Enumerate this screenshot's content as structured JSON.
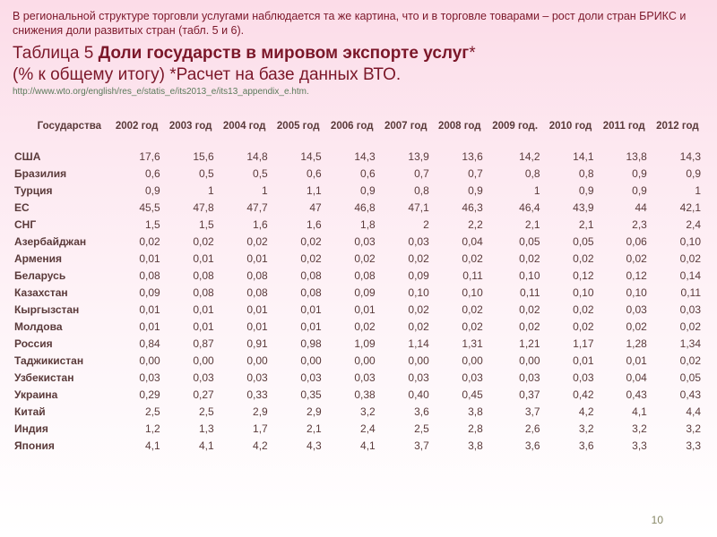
{
  "intro": "В региональной структуре торговли услугами наблюдается та же картина, что и в торговле товарами – рост доли стран БРИКС и снижения доли развитых стран (табл. 5 и 6).",
  "title_prefix": "Таблица 5 ",
  "title_bold": "Доли государств в мировом экспорте услуг",
  "asterisk": "*",
  "subtitle": "(% к общему итогу)  *Расчет на базе данных ВТО.",
  "source_url": "http://www.wto.org/english/res_e/statis_e/its2013_e/its13_appendix_e.htm.",
  "page_number": "10",
  "header_country": "Государства",
  "years": [
    "2002 год",
    "2003 год",
    "2004 год",
    "2005 год",
    "2006 год",
    "2007 год",
    "2008 год",
    "2009 год.",
    "2010 год",
    "2011 год",
    "2012 год"
  ],
  "rows": [
    {
      "name": "США",
      "vals": [
        "17,6",
        "15,6",
        "14,8",
        "14,5",
        "14,3",
        "13,9",
        "13,6",
        "14,2",
        "14,1",
        "13,8",
        "14,3"
      ]
    },
    {
      "name": "Бразилия",
      "vals": [
        "0,6",
        "0,5",
        "0,5",
        "0,6",
        "0,6",
        "0,7",
        "0,7",
        "0,8",
        "0,8",
        "0,9",
        "0,9"
      ]
    },
    {
      "name": "Турция",
      "vals": [
        "0,9",
        "1",
        "1",
        "1,1",
        "0,9",
        "0,8",
        "0,9",
        "1",
        "0,9",
        "0,9",
        "1"
      ]
    },
    {
      "name": "ЕС",
      "vals": [
        "45,5",
        "47,8",
        "47,7",
        "47",
        "46,8",
        "47,1",
        "46,3",
        "46,4",
        "43,9",
        "44",
        "42,1"
      ]
    },
    {
      "name": "СНГ",
      "vals": [
        "1,5",
        "1,5",
        "1,6",
        "1,6",
        "1,8",
        "2",
        "2,2",
        "2,1",
        "2,1",
        "2,3",
        "2,4"
      ]
    },
    {
      "name": "Азербайджан",
      "vals": [
        "0,02",
        "0,02",
        "0,02",
        "0,02",
        "0,03",
        "0,03",
        "0,04",
        "0,05",
        "0,05",
        "0,06",
        "0,10"
      ]
    },
    {
      "name": "Армения",
      "vals": [
        "0,01",
        "0,01",
        "0,01",
        "0,02",
        "0,02",
        "0,02",
        "0,02",
        "0,02",
        "0,02",
        "0,02",
        "0,02"
      ]
    },
    {
      "name": "Беларусь",
      "vals": [
        "0,08",
        "0,08",
        "0,08",
        "0,08",
        "0,08",
        "0,09",
        "0,11",
        "0,10",
        "0,12",
        "0,12",
        "0,14"
      ]
    },
    {
      "name": "Казахстан",
      "vals": [
        "0,09",
        "0,08",
        "0,08",
        "0,08",
        "0,09",
        "0,10",
        "0,10",
        "0,11",
        "0,10",
        "0,10",
        "0,11"
      ]
    },
    {
      "name": "Кыргызстан",
      "vals": [
        "0,01",
        "0,01",
        "0,01",
        "0,01",
        "0,01",
        "0,02",
        "0,02",
        "0,02",
        "0,02",
        "0,03",
        "0,03"
      ]
    },
    {
      "name": "Молдова",
      "vals": [
        "0,01",
        "0,01",
        "0,01",
        "0,01",
        "0,02",
        "0,02",
        "0,02",
        "0,02",
        "0,02",
        "0,02",
        "0,02"
      ]
    },
    {
      "name": "Россия",
      "vals": [
        "0,84",
        "0,87",
        "0,91",
        "0,98",
        "1,09",
        "1,14",
        "1,31",
        "1,21",
        "1,17",
        "1,28",
        "1,34"
      ]
    },
    {
      "name": "Таджикистан",
      "vals": [
        "0,00",
        "0,00",
        "0,00",
        "0,00",
        "0,00",
        "0,00",
        "0,00",
        "0,00",
        "0,01",
        "0,01",
        "0,02"
      ]
    },
    {
      "name": "Узбекистан",
      "vals": [
        "0,03",
        "0,03",
        "0,03",
        "0,03",
        "0,03",
        "0,03",
        "0,03",
        "0,03",
        "0,03",
        "0,04",
        "0,05"
      ]
    },
    {
      "name": "Украина",
      "vals": [
        "0,29",
        "0,27",
        "0,33",
        "0,35",
        "0,38",
        "0,40",
        "0,45",
        "0,37",
        "0,42",
        "0,43",
        "0,43"
      ]
    },
    {
      "name": "Китай",
      "vals": [
        "2,5",
        "2,5",
        "2,9",
        "2,9",
        "3,2",
        "3,6",
        "3,8",
        "3,7",
        "4,2",
        "4,1",
        "4,4"
      ]
    },
    {
      "name": "Индия",
      "vals": [
        "1,2",
        "1,3",
        "1,7",
        "2,1",
        "2,4",
        "2,5",
        "2,8",
        "2,6",
        "3,2",
        "3,2",
        "3,2"
      ]
    },
    {
      "name": "Япония",
      "vals": [
        "4,1",
        "4,1",
        "4,2",
        "4,3",
        "4,1",
        "3,7",
        "3,8",
        "3,6",
        "3,6",
        "3,3",
        "3,3"
      ]
    }
  ]
}
